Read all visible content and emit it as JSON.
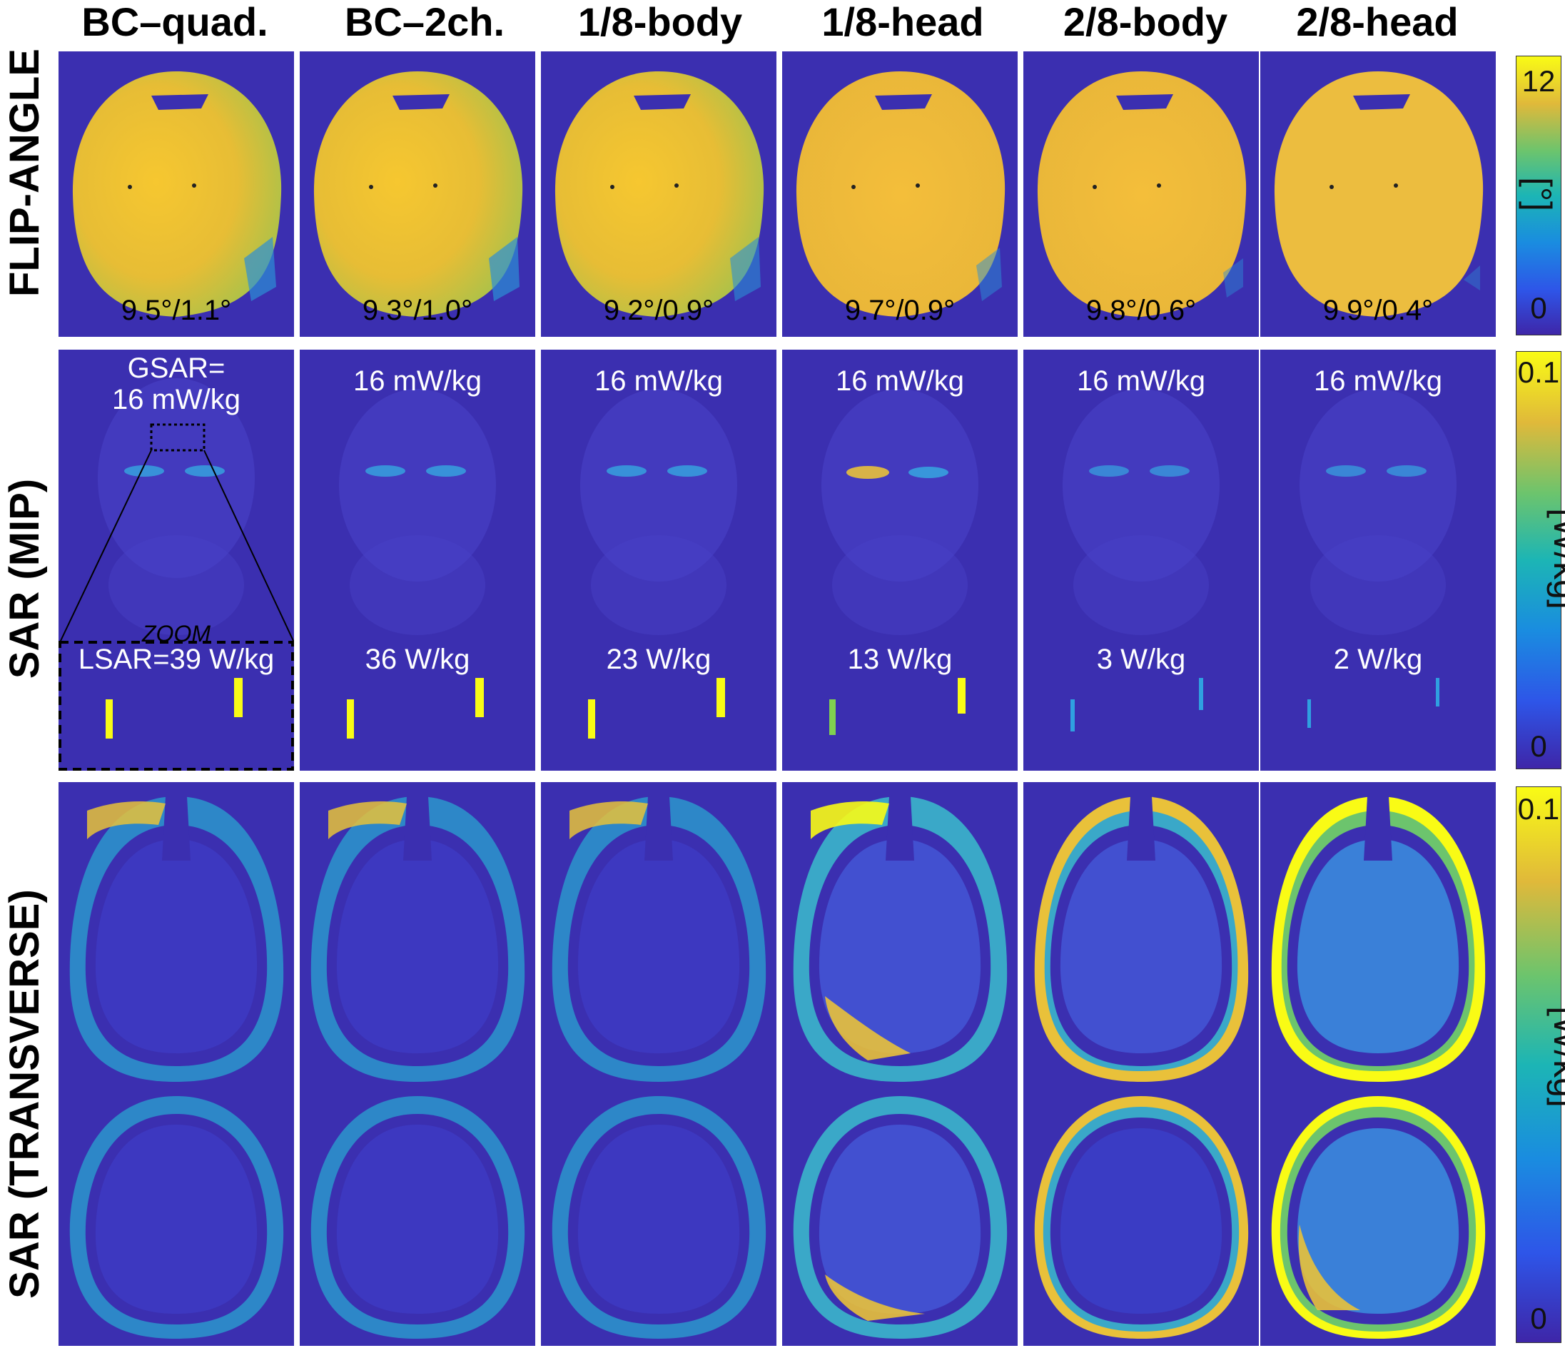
{
  "columns": [
    "BC–quad.",
    "BC–2ch.",
    "1/8-body",
    "1/8-head",
    "2/8-body",
    "2/8-head"
  ],
  "rows": {
    "flip_angle": "FLIP-ANGLE",
    "sar_mip": "SAR (MIP)",
    "sar_transverse": "SAR (TRANSVERSE)"
  },
  "flip_angle_stats": [
    "9.5°/1.1°",
    "9.3°/1.0°",
    "9.2°/0.9°",
    "9.7°/0.9°",
    "9.8°/0.6°",
    "9.9°/0.4°"
  ],
  "mip": {
    "gsar_line1": "GSAR=",
    "gsar_line2": "16 mW/kg",
    "gsar": [
      "16 mW/kg",
      "16 mW/kg",
      "16 mW/kg",
      "16 mW/kg",
      "16 mW/kg"
    ],
    "zoom": "ZOOM",
    "lsar_first": "LSAR=39 W/kg",
    "lsar": [
      "36 W/kg",
      "23 W/kg",
      "13 W/kg",
      "3 W/kg",
      "2 W/kg"
    ]
  },
  "colorbars": {
    "flip": {
      "max": "12",
      "min": "0",
      "unit": "[°]"
    },
    "mip": {
      "max": "0.1",
      "min": "0",
      "unit": "[W/kg]"
    },
    "transverse": {
      "max": "0.1",
      "min": "0",
      "unit": "[W/kg]"
    }
  },
  "colors": {
    "background_map": "#3b2fb0",
    "map_high": "#f9fb15",
    "map_mid": "#e8b530"
  }
}
